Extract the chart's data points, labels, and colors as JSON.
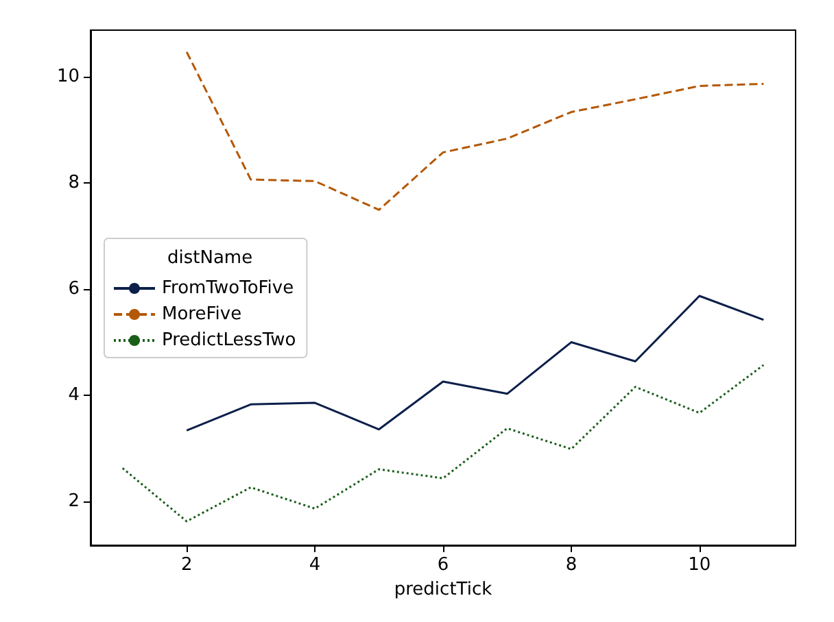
{
  "chart_data": {
    "type": "line",
    "xlabel": "predictTick",
    "legend_title": "distName",
    "legend": "left",
    "grid": false,
    "marker": "none",
    "xlim": [
      0.5,
      11.5
    ],
    "xticks": [
      2,
      4,
      6,
      8,
      10
    ],
    "ylim": [
      1.18,
      10.87
    ],
    "yticks": [
      2,
      4,
      6,
      8,
      10
    ],
    "series": [
      {
        "name": "FromTwoToFive",
        "color": "#0c1f4a",
        "line_style": "solid",
        "x": [
          2,
          3,
          4,
          5,
          6,
          7,
          8,
          9,
          10,
          11
        ],
        "values": [
          3.34,
          3.83,
          3.86,
          3.36,
          4.26,
          4.03,
          5.0,
          4.64,
          5.87,
          5.42
        ]
      },
      {
        "name": "MoreFive",
        "color": "#b35806",
        "line_style": "dashed",
        "x": [
          2,
          3,
          4,
          5,
          6,
          7,
          8,
          9,
          10,
          11
        ],
        "values": [
          10.46,
          8.06,
          8.03,
          7.49,
          8.57,
          8.83,
          9.33,
          9.57,
          9.82,
          9.86
        ]
      },
      {
        "name": "PredictLessTwo",
        "color": "#1a5e1a",
        "line_style": "dotted",
        "x": [
          1,
          2,
          3,
          4,
          5,
          6,
          7,
          8,
          9,
          10,
          11
        ],
        "values": [
          2.63,
          1.63,
          2.27,
          1.87,
          2.61,
          2.44,
          3.38,
          2.99,
          4.16,
          3.67,
          4.57
        ]
      }
    ]
  }
}
